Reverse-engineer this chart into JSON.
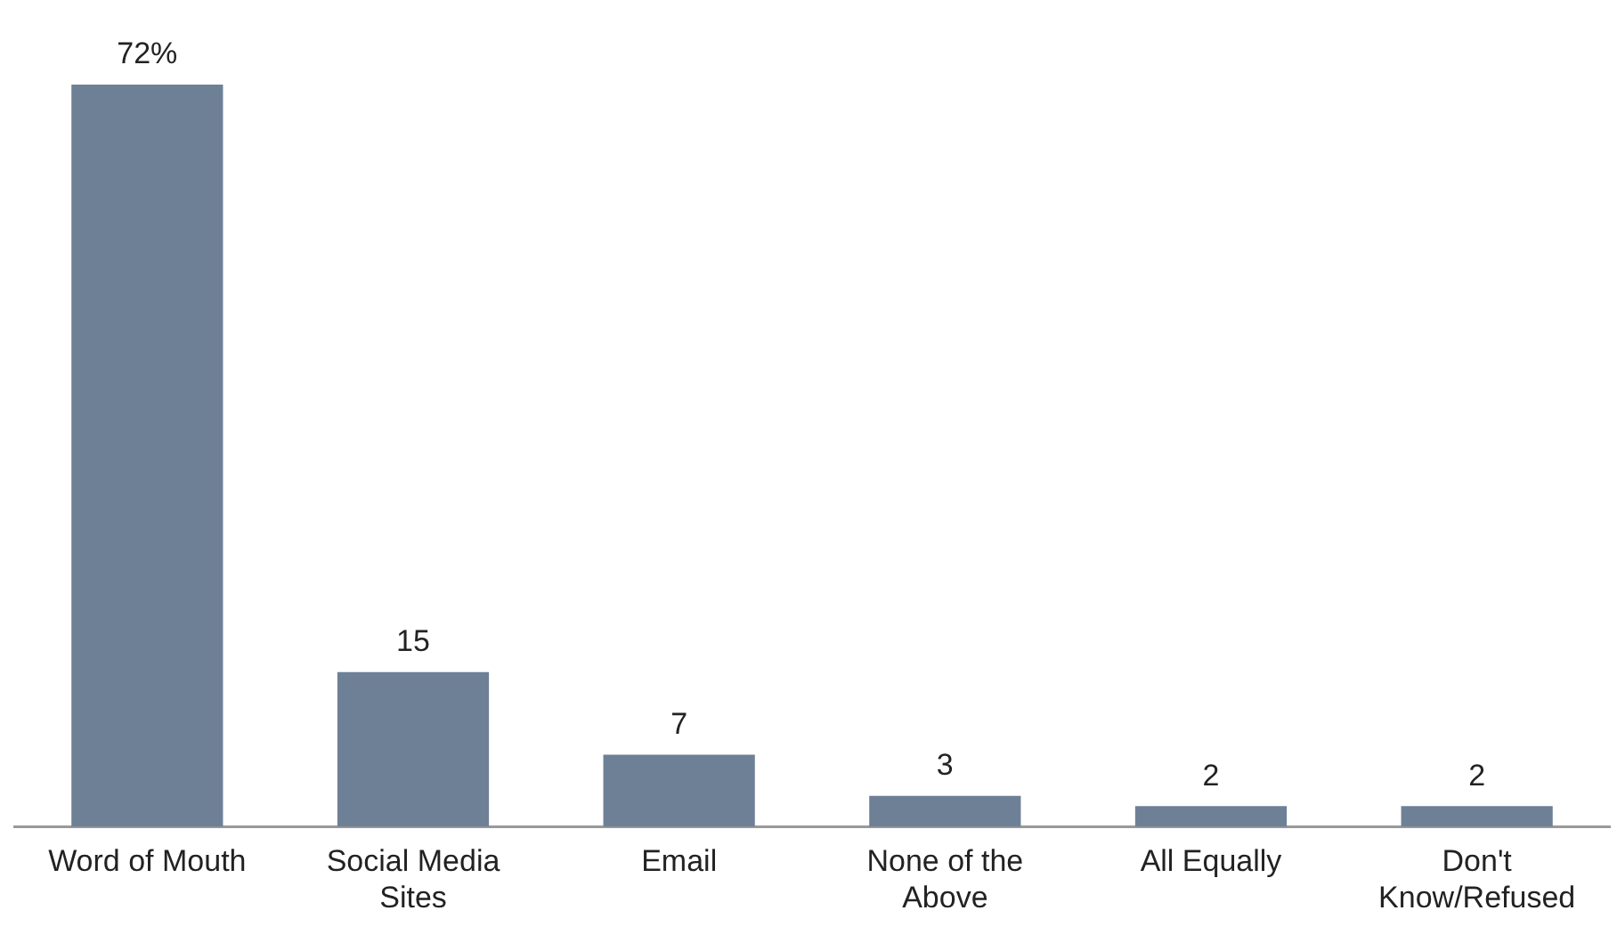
{
  "chart_data": {
    "type": "bar",
    "categories": [
      "Word of Mouth",
      "Social Media Sites",
      "Email",
      "None of the Above",
      "All Equally",
      "Don't Know/Refused"
    ],
    "values": [
      72,
      15,
      7,
      3,
      2,
      2
    ],
    "value_labels": [
      "72%",
      "15",
      "7",
      "3",
      "2",
      "2"
    ],
    "color": "#6e8096",
    "grid": false,
    "legend": false
  }
}
